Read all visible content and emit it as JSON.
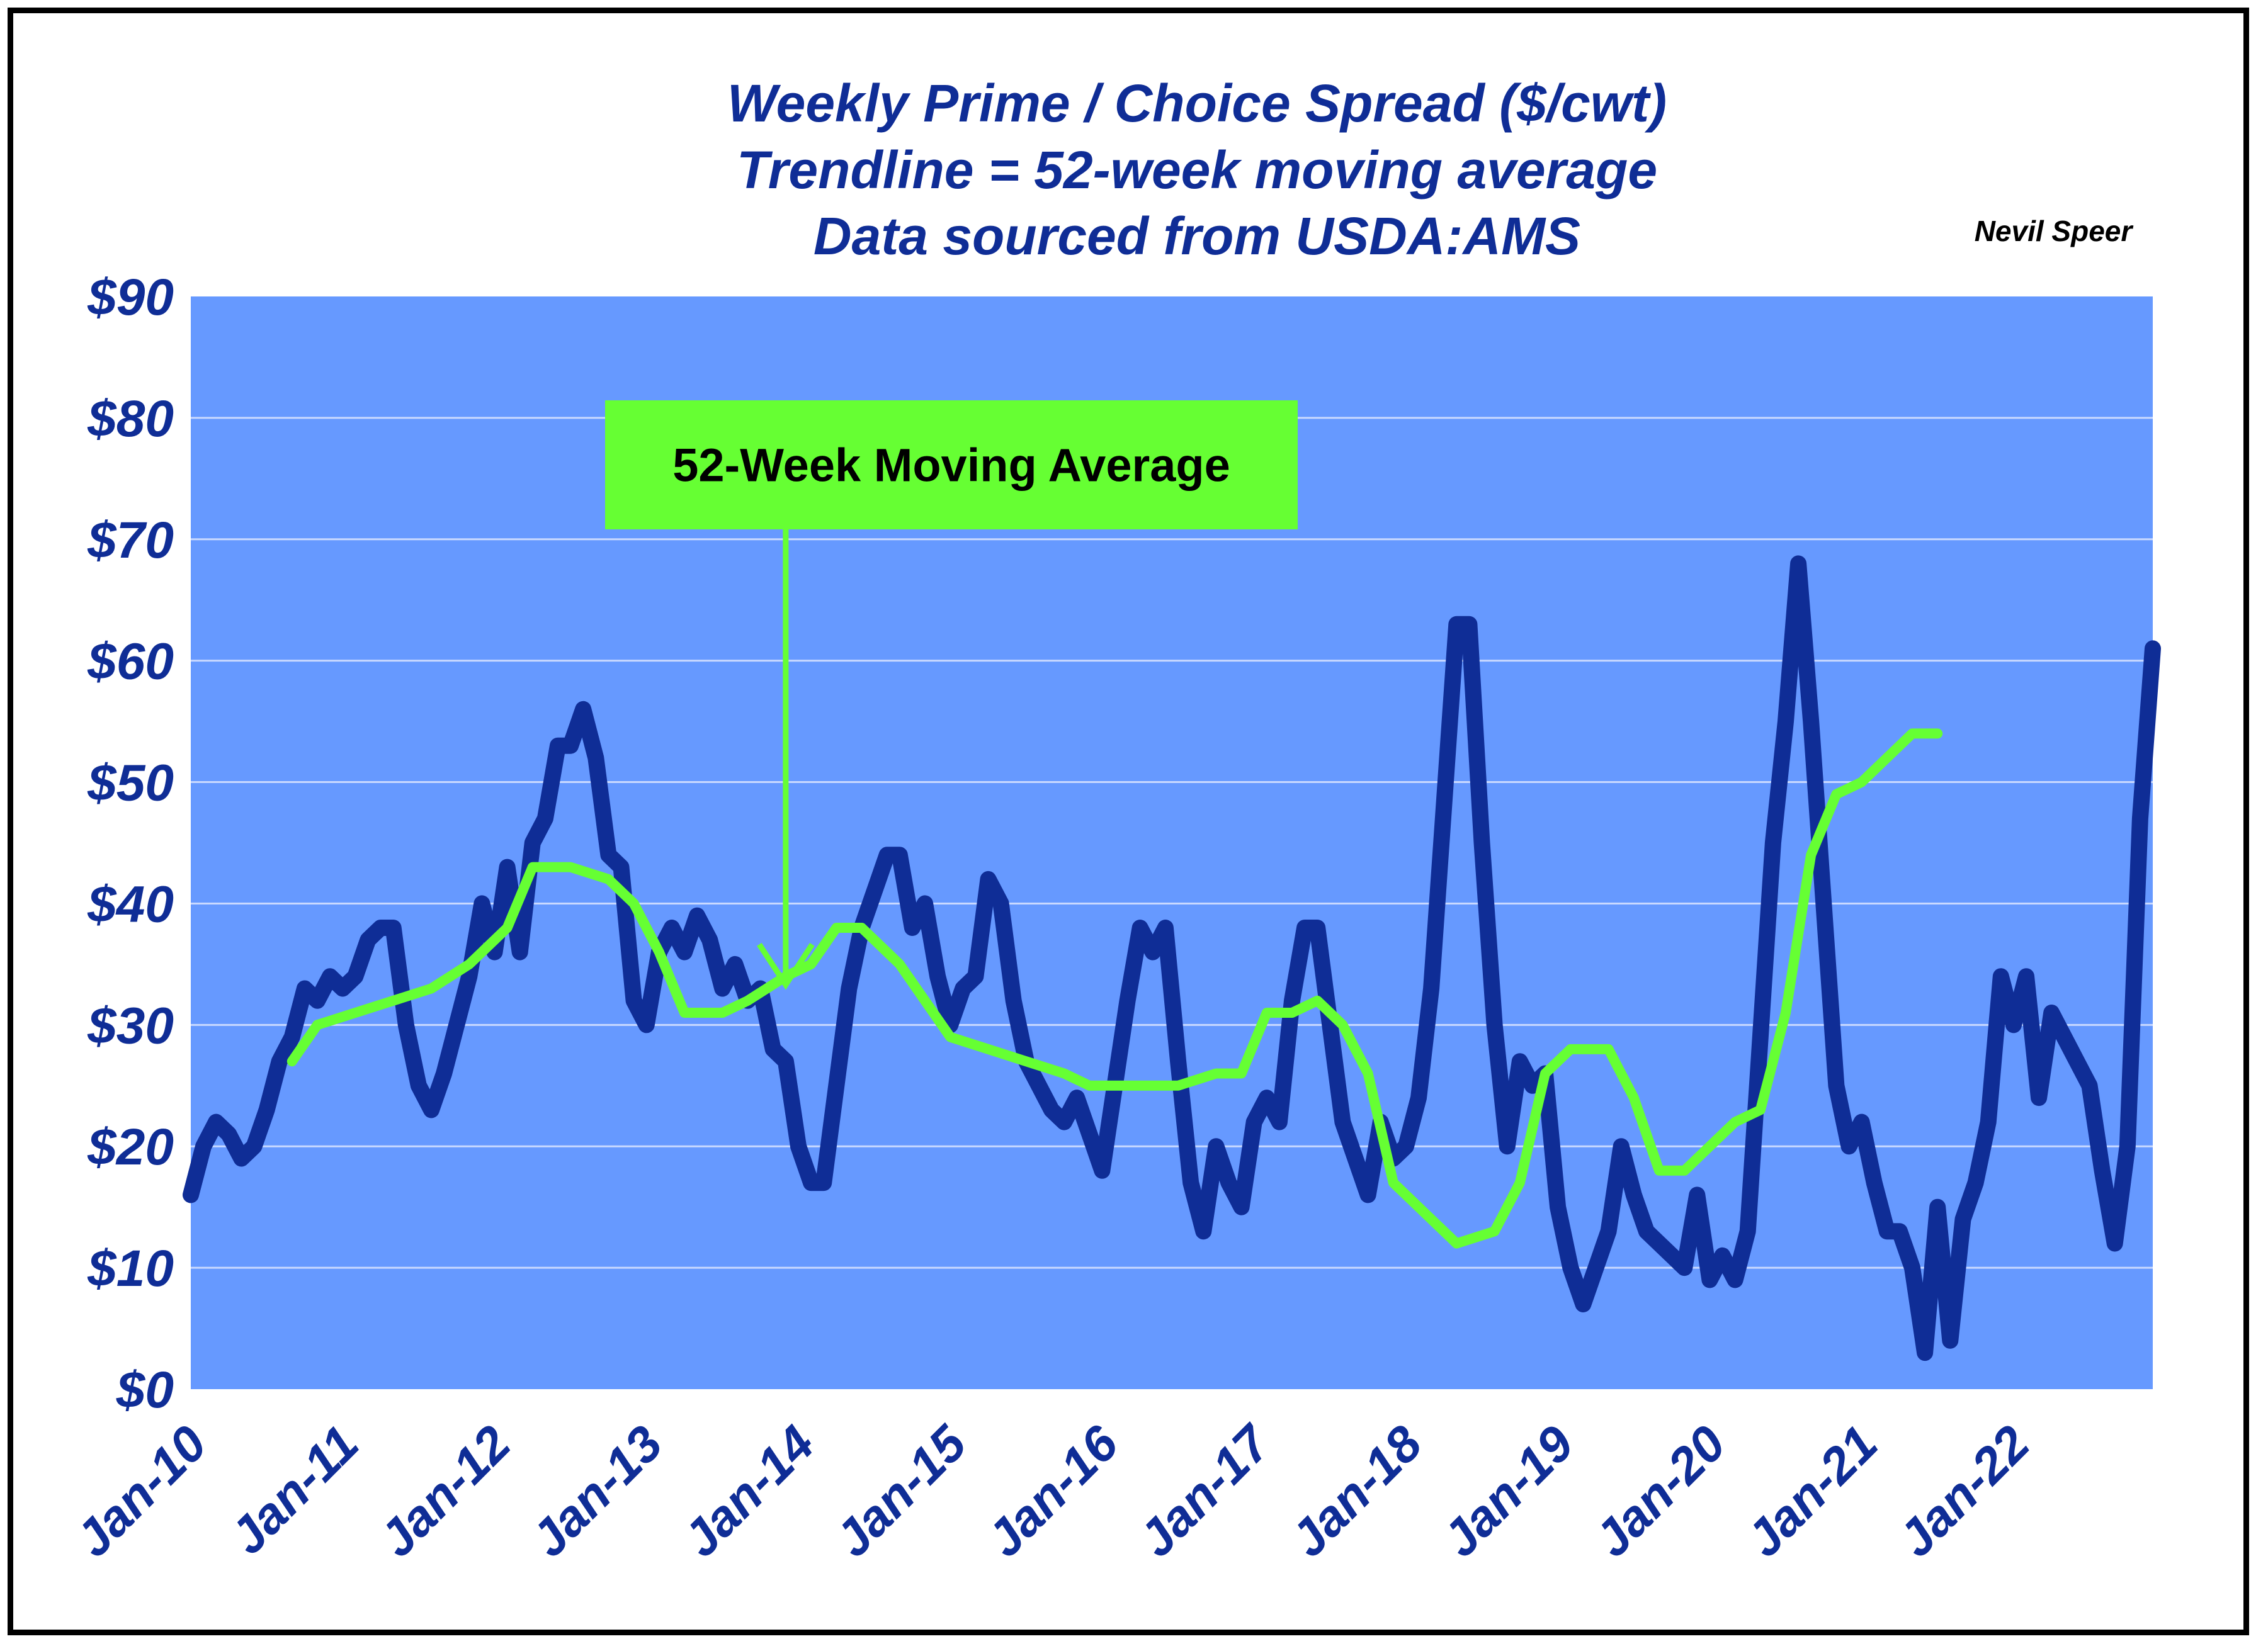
{
  "author_credit": "Nevil Speer",
  "colors": {
    "plot_bg": "#6699ff",
    "gridline": "#c9d9ff",
    "spread_line": "#0f2d96",
    "moving_avg_line": "#66ff33",
    "annotation_box": "#66ff33",
    "title_text": "#0f2d96"
  },
  "chart_data": {
    "type": "line",
    "title": [
      "Weekly Prime / Choice Spread ($/cwt)",
      "Trendline = 52-week moving average",
      "Data sourced from USDA:AMS"
    ],
    "xlabel": "",
    "ylabel": "",
    "ylim": [
      0,
      90
    ],
    "y_ticks": [
      "$0",
      "$10",
      "$20",
      "$30",
      "$40",
      "$50",
      "$60",
      "$70",
      "$80",
      "$90"
    ],
    "x_ticks": [
      "Jan-10",
      "Jan-11",
      "Jan-12",
      "Jan-13",
      "Jan-14",
      "Jan-15",
      "Jan-16",
      "Jan-17",
      "Jan-18",
      "Jan-19",
      "Jan-20",
      "Jan-21",
      "Jan-22"
    ],
    "xlim": [
      "2010-01",
      "2022-12"
    ],
    "grid": true,
    "legend": "none",
    "annotation": {
      "text": "52-Week Moving Average",
      "points_to": [
        "2013-12",
        33
      ]
    },
    "series": [
      {
        "points": [
          [
            "2010-01",
            16
          ],
          [
            "2010-02",
            20
          ],
          [
            "2010-03",
            22
          ],
          [
            "2010-04",
            21
          ],
          [
            "2010-05",
            19
          ],
          [
            "2010-06",
            20
          ],
          [
            "2010-07",
            23
          ],
          [
            "2010-08",
            27
          ],
          [
            "2010-09",
            29
          ],
          [
            "2010-10",
            33
          ],
          [
            "2010-11",
            32
          ],
          [
            "2010-12",
            34
          ],
          [
            "2011-01",
            33
          ],
          [
            "2011-02",
            34
          ],
          [
            "2011-03",
            37
          ],
          [
            "2011-04",
            38
          ],
          [
            "2011-05",
            38
          ],
          [
            "2011-06",
            30
          ],
          [
            "2011-07",
            25
          ],
          [
            "2011-08",
            23
          ],
          [
            "2011-09",
            26
          ],
          [
            "2011-10",
            30
          ],
          [
            "2011-11",
            34
          ],
          [
            "2011-12",
            40
          ],
          [
            "2012-01",
            36
          ],
          [
            "2012-02",
            43
          ],
          [
            "2012-03",
            36
          ],
          [
            "2012-04",
            45
          ],
          [
            "2012-05",
            47
          ],
          [
            "2012-06",
            53
          ],
          [
            "2012-07",
            53
          ],
          [
            "2012-08",
            56
          ],
          [
            "2012-09",
            52
          ],
          [
            "2012-10",
            44
          ],
          [
            "2012-11",
            43
          ],
          [
            "2012-12",
            32
          ],
          [
            "2013-01",
            30
          ],
          [
            "2013-02",
            36
          ],
          [
            "2013-03",
            38
          ],
          [
            "2013-04",
            36
          ],
          [
            "2013-05",
            39
          ],
          [
            "2013-06",
            37
          ],
          [
            "2013-07",
            33
          ],
          [
            "2013-08",
            35
          ],
          [
            "2013-09",
            32
          ],
          [
            "2013-10",
            33
          ],
          [
            "2013-11",
            28
          ],
          [
            "2013-12",
            27
          ],
          [
            "2014-01",
            20
          ],
          [
            "2014-02",
            17
          ],
          [
            "2014-03",
            17
          ],
          [
            "2014-04",
            25
          ],
          [
            "2014-05",
            33
          ],
          [
            "2014-06",
            38
          ],
          [
            "2014-07",
            41
          ],
          [
            "2014-08",
            44
          ],
          [
            "2014-09",
            44
          ],
          [
            "2014-10",
            38
          ],
          [
            "2014-11",
            40
          ],
          [
            "2014-12",
            34
          ],
          [
            "2015-01",
            30
          ],
          [
            "2015-02",
            33
          ],
          [
            "2015-03",
            34
          ],
          [
            "2015-04",
            42
          ],
          [
            "2015-05",
            40
          ],
          [
            "2015-06",
            32
          ],
          [
            "2015-07",
            27
          ],
          [
            "2015-08",
            25
          ],
          [
            "2015-09",
            23
          ],
          [
            "2015-10",
            22
          ],
          [
            "2015-11",
            24
          ],
          [
            "2015-12",
            21
          ],
          [
            "2016-01",
            18
          ],
          [
            "2016-02",
            25
          ],
          [
            "2016-03",
            32
          ],
          [
            "2016-04",
            38
          ],
          [
            "2016-05",
            36
          ],
          [
            "2016-06",
            38
          ],
          [
            "2016-07",
            27
          ],
          [
            "2016-08",
            17
          ],
          [
            "2016-09",
            13
          ],
          [
            "2016-10",
            20
          ],
          [
            "2016-11",
            17
          ],
          [
            "2016-12",
            15
          ],
          [
            "2017-01",
            22
          ],
          [
            "2017-02",
            24
          ],
          [
            "2017-03",
            22
          ],
          [
            "2017-04",
            32
          ],
          [
            "2017-05",
            38
          ],
          [
            "2017-06",
            38
          ],
          [
            "2017-07",
            30
          ],
          [
            "2017-08",
            22
          ],
          [
            "2017-09",
            19
          ],
          [
            "2017-10",
            16
          ],
          [
            "2017-11",
            22
          ],
          [
            "2017-12",
            19
          ],
          [
            "2018-01",
            20
          ],
          [
            "2018-02",
            24
          ],
          [
            "2018-03",
            33
          ],
          [
            "2018-04",
            48
          ],
          [
            "2018-05",
            63
          ],
          [
            "2018-06",
            63
          ],
          [
            "2018-07",
            45
          ],
          [
            "2018-08",
            30
          ],
          [
            "2018-09",
            20
          ],
          [
            "2018-10",
            27
          ],
          [
            "2018-11",
            25
          ],
          [
            "2018-12",
            26
          ],
          [
            "2019-01",
            15
          ],
          [
            "2019-02",
            10
          ],
          [
            "2019-03",
            7
          ],
          [
            "2019-04",
            10
          ],
          [
            "2019-05",
            13
          ],
          [
            "2019-06",
            20
          ],
          [
            "2019-07",
            16
          ],
          [
            "2019-08",
            13
          ],
          [
            "2019-09",
            12
          ],
          [
            "2019-10",
            11
          ],
          [
            "2019-11",
            10
          ],
          [
            "2019-12",
            16
          ],
          [
            "2020-01",
            9
          ],
          [
            "2020-02",
            11
          ],
          [
            "2020-03",
            9
          ],
          [
            "2020-04",
            13
          ],
          [
            "2020-05",
            29
          ],
          [
            "2020-06",
            45
          ],
          [
            "2020-07",
            55
          ],
          [
            "2020-08",
            68
          ],
          [
            "2020-09",
            55
          ],
          [
            "2020-10",
            40
          ],
          [
            "2020-11",
            25
          ],
          [
            "2020-12",
            20
          ],
          [
            "2021-01",
            22
          ],
          [
            "2021-02",
            17
          ],
          [
            "2021-03",
            13
          ],
          [
            "2021-04",
            13
          ],
          [
            "2021-05",
            10
          ],
          [
            "2021-06",
            3
          ],
          [
            "2021-07",
            15
          ],
          [
            "2021-08",
            4
          ],
          [
            "2021-09",
            14
          ],
          [
            "2021-10",
            17
          ],
          [
            "2021-11",
            22
          ],
          [
            "2021-12",
            34
          ],
          [
            "2022-01",
            30
          ],
          [
            "2022-02",
            34
          ],
          [
            "2022-03",
            24
          ],
          [
            "2022-04",
            31
          ],
          [
            "2022-05",
            29
          ],
          [
            "2022-06",
            27
          ],
          [
            "2022-07",
            25
          ],
          [
            "2022-08",
            18
          ],
          [
            "2022-09",
            12
          ],
          [
            "2022-10",
            20
          ],
          [
            "2022-11",
            47
          ],
          [
            "2022-12",
            61
          ]
        ]
      },
      {
        "points": [
          [
            "2010-09",
            27
          ],
          [
            "2010-11",
            30
          ],
          [
            "2011-02",
            31
          ],
          [
            "2011-05",
            32
          ],
          [
            "2011-08",
            33
          ],
          [
            "2011-11",
            35
          ],
          [
            "2012-02",
            38
          ],
          [
            "2012-04",
            43
          ],
          [
            "2012-07",
            43
          ],
          [
            "2012-10",
            42
          ],
          [
            "2012-12",
            40
          ],
          [
            "2013-02",
            36
          ],
          [
            "2013-04",
            31
          ],
          [
            "2013-07",
            31
          ],
          [
            "2013-09",
            32
          ],
          [
            "2013-12",
            34
          ],
          [
            "2014-02",
            35
          ],
          [
            "2014-04",
            38
          ],
          [
            "2014-06",
            38
          ],
          [
            "2014-09",
            35
          ],
          [
            "2014-11",
            32
          ],
          [
            "2015-01",
            29
          ],
          [
            "2015-04",
            28
          ],
          [
            "2015-07",
            27
          ],
          [
            "2015-10",
            26
          ],
          [
            "2015-12",
            25
          ],
          [
            "2016-02",
            25
          ],
          [
            "2016-04",
            25
          ],
          [
            "2016-07",
            25
          ],
          [
            "2016-10",
            26
          ],
          [
            "2016-12",
            26
          ],
          [
            "2017-02",
            31
          ],
          [
            "2017-04",
            31
          ],
          [
            "2017-06",
            32
          ],
          [
            "2017-08",
            30
          ],
          [
            "2017-10",
            26
          ],
          [
            "2017-12",
            17
          ],
          [
            "2018-03",
            14
          ],
          [
            "2018-05",
            12
          ],
          [
            "2018-08",
            13
          ],
          [
            "2018-10",
            17
          ],
          [
            "2018-12",
            26
          ],
          [
            "2019-02",
            28
          ],
          [
            "2019-05",
            28
          ],
          [
            "2019-07",
            24
          ],
          [
            "2019-09",
            18
          ],
          [
            "2019-11",
            18
          ],
          [
            "2020-01",
            20
          ],
          [
            "2020-03",
            22
          ],
          [
            "2020-05",
            23
          ],
          [
            "2020-07",
            31
          ],
          [
            "2020-09",
            44
          ],
          [
            "2020-11",
            49
          ],
          [
            "2021-01",
            50
          ],
          [
            "2021-03",
            52
          ],
          [
            "2021-05",
            54
          ],
          [
            "2021-07",
            54
          ]
        ]
      }
    ]
  }
}
